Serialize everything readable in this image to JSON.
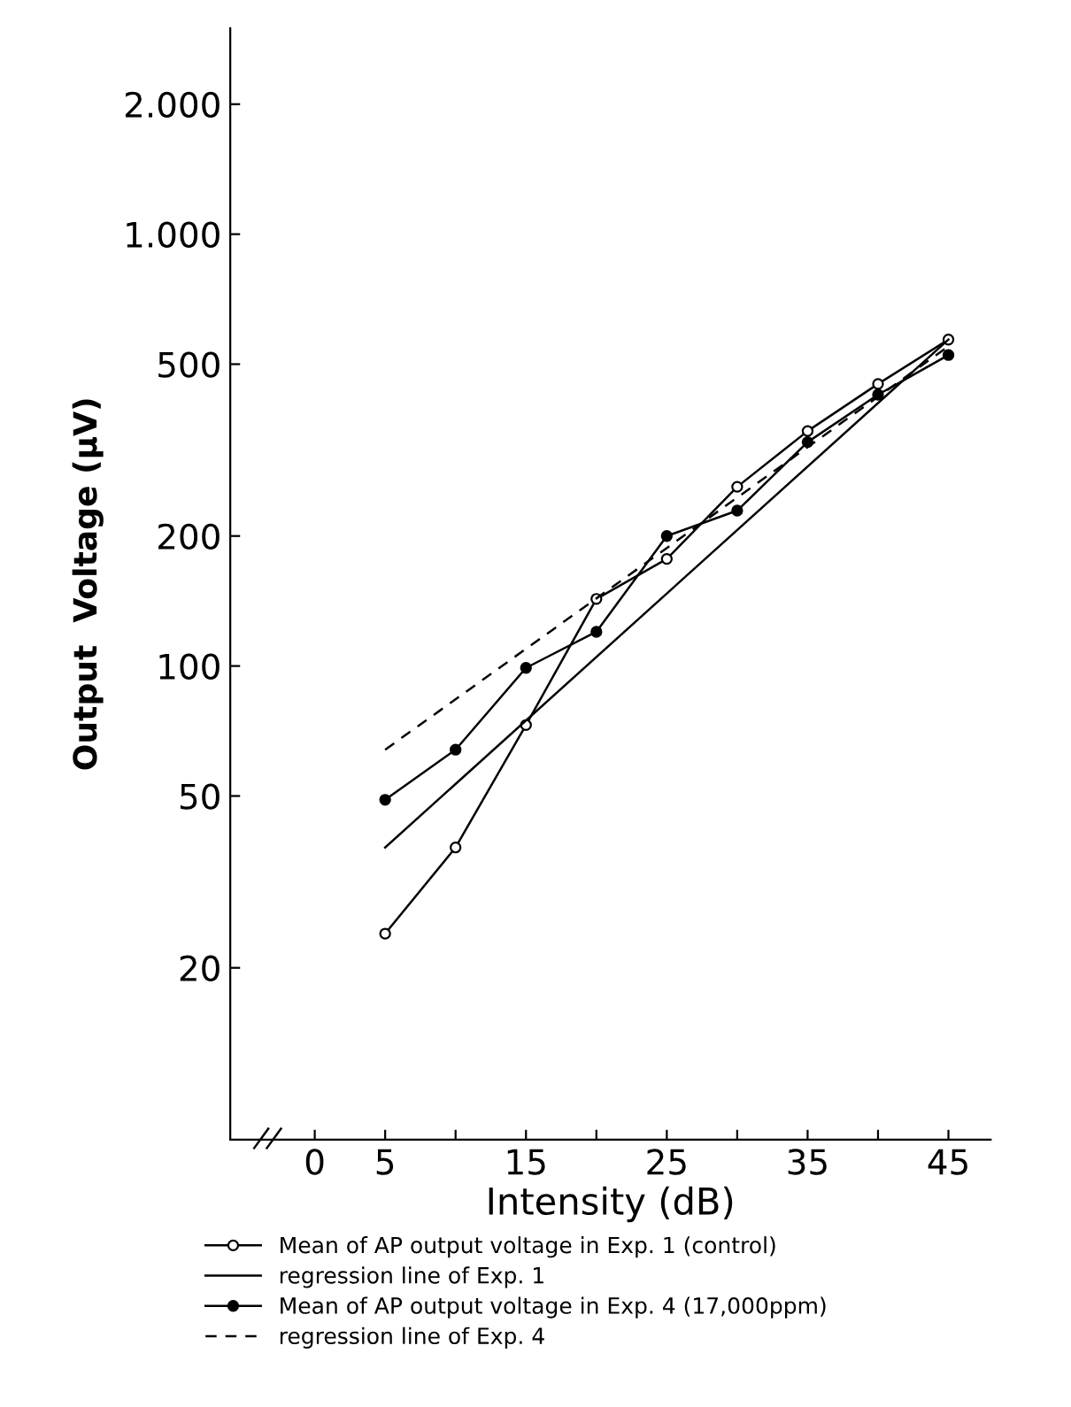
{
  "chart_data": {
    "type": "line",
    "xlabel": "Intensity (dB)",
    "ylabel": "Output  Voltage (μV)",
    "log": "y",
    "xlim": [
      -6,
      48
    ],
    "xticks": [
      0,
      5,
      {
        "value": 10,
        "label": null
      },
      15,
      {
        "value": 20,
        "label": null
      },
      25,
      {
        "value": 30,
        "label": null
      },
      35,
      {
        "value": 40,
        "label": null
      },
      45
    ],
    "ylim": [
      8,
      3000
    ],
    "yticks": [
      20,
      50,
      100,
      200,
      500,
      {
        "value": 1000,
        "label": "1.000"
      },
      {
        "value": 2000,
        "label": "2.000"
      }
    ],
    "grid": false,
    "legend": "bottom",
    "series": [
      {
        "name": "Mean of AP output voltage in Exp. 1 (control)",
        "color": "#000000",
        "marker": "circle",
        "line_style": "solid",
        "x": [
          5,
          10,
          15,
          20,
          25,
          30,
          35,
          40,
          45
        ],
        "values": [
          24,
          38,
          73,
          143,
          177,
          260,
          350,
          450,
          570
        ]
      },
      {
        "name": "regression line of Exp. 1",
        "color": "#000000",
        "marker": "none",
        "line_style": "solid",
        "x": [
          5,
          45
        ],
        "values": [
          38,
          570
        ]
      },
      {
        "name": "Mean of AP output voltage in Exp. 4 (17,000ppm)",
        "color": "#000000",
        "marker": "circle",
        "line_style": "solid",
        "x": [
          5,
          10,
          15,
          20,
          25,
          30,
          35,
          40,
          45
        ],
        "values": [
          49,
          64,
          99,
          120,
          200,
          229,
          330,
          425,
          525
        ]
      },
      {
        "name": "regression line of Exp. 4",
        "color": "#000000",
        "marker": "none",
        "line_style": "dashed",
        "x": [
          5,
          45
        ],
        "values": [
          64,
          550
        ]
      }
    ]
  }
}
